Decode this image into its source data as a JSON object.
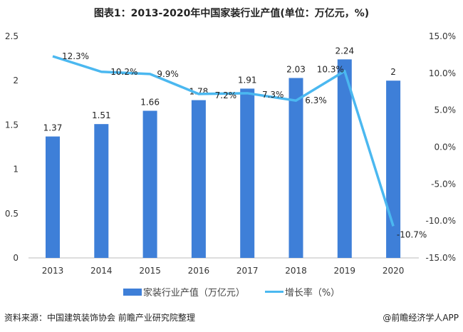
{
  "chart_data": {
    "type": "bar+line",
    "title": "图表1：2013-2020年中国家装行业产值(单位：万亿元，%)",
    "categories": [
      "2013",
      "2014",
      "2015",
      "2016",
      "2017",
      "2018",
      "2019",
      "2020"
    ],
    "series": [
      {
        "name": "家装行业产值（万亿元）",
        "type": "bar",
        "axis": "left",
        "color": "#3E7FD8",
        "values": [
          1.37,
          1.51,
          1.66,
          1.78,
          1.91,
          2.03,
          2.24,
          2
        ],
        "labels": [
          "1.37",
          "1.51",
          "1.66",
          "1.78",
          "1.91",
          "2.03",
          "2.24",
          "2"
        ]
      },
      {
        "name": "增长率（%）",
        "type": "line",
        "axis": "right",
        "color": "#4BB8F0",
        "values": [
          12.3,
          10.2,
          9.9,
          7.2,
          7.3,
          6.3,
          10.3,
          -10.7
        ],
        "labels": [
          "12.3%",
          "10.2%",
          "9.9%",
          "7.2%",
          "7.3%",
          "6.3%",
          "10.3%",
          "-10.7%"
        ]
      }
    ],
    "y_left": {
      "range": [
        0,
        2.5
      ],
      "ticks": [
        "0",
        "0.5",
        "1",
        "1.5",
        "2",
        "2.5"
      ]
    },
    "y_right": {
      "range": [
        -15,
        15
      ],
      "ticks": [
        "-15.0%",
        "-10.0%",
        "-5.0%",
        "0.0%",
        "5.0%",
        "10.0%",
        "15.0%"
      ]
    },
    "grid": false,
    "legend_position": "bottom"
  },
  "source": "资料来源：中国建筑装饰协会 前瞻产业研究院整理",
  "credit": "@前瞻经济学人APP",
  "watermark": "前瞻产业研究院"
}
